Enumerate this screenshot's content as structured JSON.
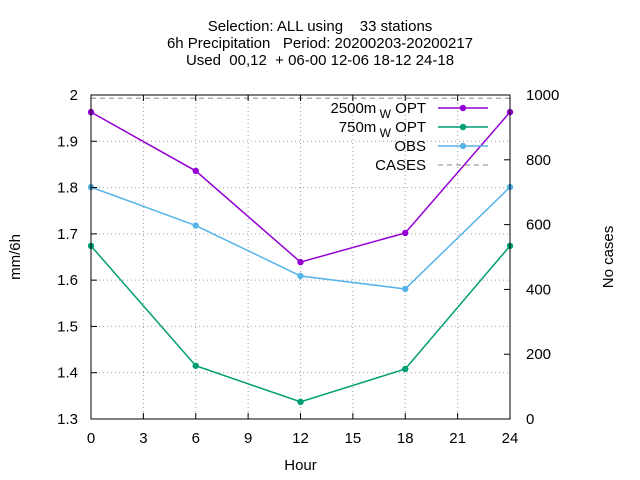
{
  "chart_data": {
    "type": "line",
    "title_lines": [
      "Selection: ALL using    33 stations",
      "6h Precipitation   Period: 20200203-20200217",
      "Used  00,12  + 06-00 12-06 18-12 24-18"
    ],
    "xlabel": "Hour",
    "ylabel": "mm/6h",
    "y2label": "No cases",
    "x": [
      0,
      6,
      12,
      18,
      24
    ],
    "xlim": [
      0,
      24
    ],
    "xticks": [
      0,
      3,
      6,
      9,
      12,
      15,
      18,
      21,
      24
    ],
    "ylim": [
      1.3,
      2.0
    ],
    "yticks": [
      "1.3",
      "1.4",
      "1.5",
      "1.6",
      "1.7",
      "1.8",
      "1.9",
      "2"
    ],
    "y2lim": [
      0,
      1000
    ],
    "y2ticks": [
      0,
      200,
      400,
      600,
      800,
      1000
    ],
    "grid": true,
    "legend_placement": "top-right",
    "series": [
      {
        "name": "2500m",
        "name_sub": "W",
        "name_suffix": "OPT",
        "color": "#9400d3",
        "axis": "y",
        "values": [
          1.963,
          1.836,
          1.639,
          1.702,
          1.963
        ]
      },
      {
        "name": "750m",
        "name_sub": "W",
        "name_suffix": "OPT",
        "color": "#009e73",
        "axis": "y",
        "values": [
          1.674,
          1.415,
          1.337,
          1.408,
          1.674
        ]
      },
      {
        "name": "OBS",
        "color": "#56b4e9",
        "axis": "y",
        "values": [
          1.801,
          1.718,
          1.609,
          1.581,
          1.801
        ]
      },
      {
        "name": "CASES",
        "color": "#a0a0a0",
        "axis": "y2",
        "dashed": true,
        "values": [
          990,
          990,
          990,
          990,
          990
        ]
      }
    ]
  }
}
